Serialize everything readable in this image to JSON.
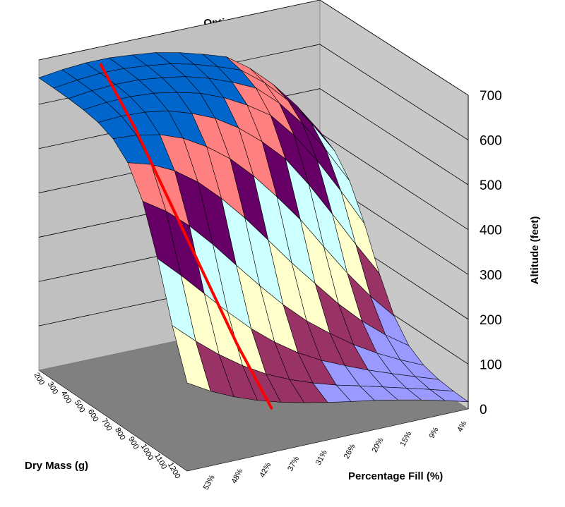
{
  "chart_data": {
    "type": "surface",
    "title": "Optimal Liquid Density",
    "xlabel": "Percentage Fill (%)",
    "ylabel": "Dry Mass (g)",
    "zlabel": "Altitude (feet)",
    "x_ticks": [
      "53%",
      "48%",
      "42%",
      "37%",
      "31%",
      "26%",
      "20%",
      "15%",
      "9%",
      "4%"
    ],
    "y_ticks": [
      "200",
      "300",
      "400",
      "500",
      "600",
      "700",
      "800",
      "900",
      "1000",
      "1100",
      "1200"
    ],
    "z_ticks": [
      "0",
      "100",
      "200",
      "300",
      "400",
      "500",
      "600",
      "700"
    ],
    "zlim": [
      0,
      700
    ],
    "band_colors": [
      "#9999ff",
      "#993366",
      "#ffffcc",
      "#ccffff",
      "#660066",
      "#ff8080",
      "#0066cc"
    ],
    "optimal_line_color": "#ff0000",
    "surface_description_values": {
      "fill_percent": [
        53,
        48,
        42,
        37,
        31,
        26,
        20,
        15,
        9,
        4
      ],
      "peak_altitude_feet": [
        660,
        670,
        675,
        672,
        668,
        655,
        640,
        600,
        540,
        460
      ],
      "optimal_curve_altitude_feet": [
        660,
        610,
        560,
        500,
        440,
        380,
        320,
        260,
        200,
        150,
        100
      ]
    }
  }
}
